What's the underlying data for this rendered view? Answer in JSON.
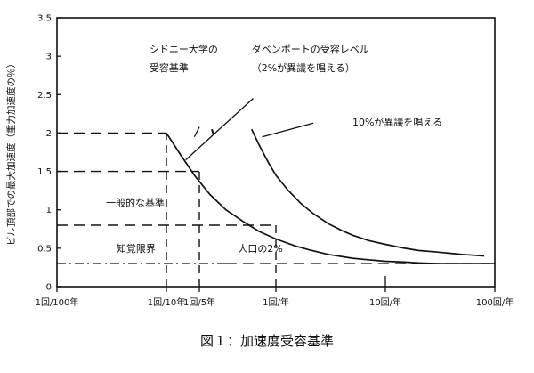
{
  "chart_data": {
    "type": "line",
    "title": "",
    "caption": "図１：加速度受容基準",
    "ylabel": "ビル頂部での最大加速度（重力加速度の％）",
    "xlabel": "",
    "ylim": [
      0,
      3.5
    ],
    "yticks": [
      {
        "value": 0,
        "label": "0"
      },
      {
        "value": 0.5,
        "label": "0.5"
      },
      {
        "value": 1,
        "label": "1"
      },
      {
        "value": 1.5,
        "label": "1.5"
      },
      {
        "value": 2,
        "label": "2"
      },
      {
        "value": 2.5,
        "label": "2.5"
      },
      {
        "value": 3,
        "label": "3"
      },
      {
        "value": 3.5,
        "label": "3.5"
      }
    ],
    "x_scale": "log",
    "x_unit": "occurrences per year",
    "xlim": [
      0.01,
      100
    ],
    "xticks": [
      {
        "value": 0.01,
        "label": "1回/100年"
      },
      {
        "value": 0.1,
        "label": "1回/10年"
      },
      {
        "value": 0.2,
        "label": "1回/5年"
      },
      {
        "value": 1,
        "label": "1回/年"
      },
      {
        "value": 10,
        "label": "10回/年"
      },
      {
        "value": 100,
        "label": "100回/年"
      }
    ],
    "grid": false,
    "series": [
      {
        "name": "シドニー大学の受容基準",
        "style": "solid",
        "x": [
          0.1,
          0.13,
          0.18,
          0.25,
          0.35,
          0.5,
          0.7,
          1,
          1.5,
          2,
          3,
          5,
          7,
          10,
          15,
          20,
          30,
          50,
          70,
          100
        ],
        "y": [
          2.0,
          1.75,
          1.45,
          1.2,
          1.0,
          0.85,
          0.72,
          0.62,
          0.53,
          0.48,
          0.42,
          0.37,
          0.35,
          0.33,
          0.32,
          0.31,
          0.3,
          0.3,
          0.3,
          0.3
        ]
      },
      {
        "name": "10%が異議を唱える",
        "style": "solid",
        "x": [
          0.6,
          0.7,
          0.85,
          1,
          1.3,
          1.7,
          2.2,
          3,
          4,
          5,
          7,
          10,
          15,
          20,
          30,
          50,
          80
        ],
        "y": [
          2.05,
          1.85,
          1.62,
          1.45,
          1.25,
          1.08,
          0.95,
          0.82,
          0.73,
          0.67,
          0.6,
          0.55,
          0.5,
          0.47,
          0.45,
          0.42,
          0.4
        ]
      },
      {
        "name": "一般的な基準",
        "style": "long-dash",
        "x": [
          0.01,
          0.1
        ],
        "y": [
          2.0,
          2.0
        ]
      },
      {
        "name": "一般的な基準",
        "style": "long-dash",
        "x": [
          0.01,
          0.2
        ],
        "y": [
          1.5,
          1.5
        ]
      },
      {
        "name": "一般的な基準",
        "style": "long-dash",
        "x": [
          0.01,
          1
        ],
        "y": [
          0.8,
          0.8
        ]
      },
      {
        "name": "人口の2%",
        "style": "long-dash",
        "x": [
          0.35,
          100
        ],
        "y": [
          0.3,
          0.3
        ]
      },
      {
        "name": "知覚限界",
        "style": "dash-dot",
        "x": [
          0.01,
          0.35
        ],
        "y": [
          0.3,
          0.3
        ]
      }
    ],
    "vertical_dashes": [
      {
        "x": 0.1,
        "y": [
          0,
          2.0
        ]
      },
      {
        "x": 0.2,
        "y": [
          0,
          1.5
        ]
      },
      {
        "x": 1,
        "y": [
          0,
          0.8
        ]
      }
    ],
    "annotations": [
      {
        "id": "sydney",
        "lines": [
          "シドニー大学の",
          "受容基準"
        ],
        "x": 0.07,
        "y": 3.05,
        "pointer": {
          "from": [
            0.2,
            2.08
          ],
          "to": [
            0.18,
            1.95
          ]
        }
      },
      {
        "id": "davenport",
        "lines": [
          "ダベンポートの受容レベル",
          "（2%が異議を唱える）"
        ],
        "x": 0.6,
        "y": 3.05,
        "pointer": {
          "from": [
            0.62,
            2.45
          ],
          "to": [
            0.15,
            1.65
          ]
        }
      },
      {
        "id": "ten_percent",
        "lines": [
          "10%が異議を唱える"
        ],
        "x": 5,
        "y": 2.1,
        "pointer": {
          "from": [
            2.2,
            2.13
          ],
          "to": [
            0.75,
            1.95
          ]
        }
      },
      {
        "id": "general",
        "lines": [
          "一般的な基準"
        ],
        "x": 0.028,
        "y": 1.05
      },
      {
        "id": "perception",
        "lines": [
          "知覚限界"
        ],
        "x": 0.035,
        "y": 0.45
      },
      {
        "id": "population",
        "lines": [
          "人口の2%"
        ],
        "x": 0.45,
        "y": 0.45
      }
    ]
  }
}
